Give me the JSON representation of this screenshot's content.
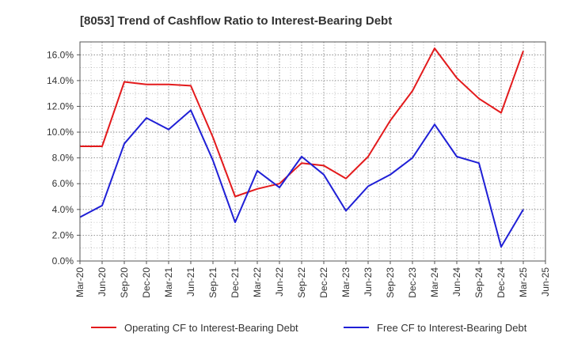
{
  "chart_data": {
    "type": "line",
    "title": "[8053]  Trend of Cashflow Ratio to Interest-Bearing Debt",
    "xlabel": "",
    "ylabel": "",
    "categories": [
      "Mar-20",
      "Jun-20",
      "Sep-20",
      "Dec-20",
      "Mar-21",
      "Jun-21",
      "Sep-21",
      "Dec-21",
      "Mar-22",
      "Jun-22",
      "Sep-22",
      "Dec-22",
      "Mar-23",
      "Jun-23",
      "Sep-23",
      "Dec-23",
      "Mar-24",
      "Jun-24",
      "Sep-24",
      "Dec-24",
      "Mar-25",
      "Jun-25"
    ],
    "ylim": [
      0,
      17
    ],
    "yticks": [
      0,
      2,
      4,
      6,
      8,
      10,
      12,
      14,
      16
    ],
    "ytick_labels": [
      "0.0%",
      "2.0%",
      "4.0%",
      "6.0%",
      "8.0%",
      "10.0%",
      "12.0%",
      "14.0%",
      "16.0%"
    ],
    "grid": true,
    "legend_position": "bottom",
    "series": [
      {
        "name": "Operating CF to Interest-Bearing Debt",
        "color": "#e31a1c",
        "values": [
          8.9,
          8.9,
          13.9,
          13.7,
          13.7,
          13.6,
          9.6,
          5.0,
          5.6,
          6.0,
          7.6,
          7.4,
          6.4,
          8.1,
          10.9,
          13.2,
          16.5,
          14.2,
          12.6,
          11.5,
          16.3,
          null
        ]
      },
      {
        "name": "Free CF to Interest-Bearing Debt",
        "color": "#1f1fd6",
        "values": [
          3.4,
          4.3,
          9.1,
          11.1,
          10.2,
          11.7,
          7.8,
          3.0,
          7.0,
          5.7,
          8.1,
          6.7,
          3.9,
          5.8,
          6.7,
          8.0,
          10.6,
          8.1,
          7.6,
          1.1,
          4.0,
          null
        ]
      }
    ]
  }
}
